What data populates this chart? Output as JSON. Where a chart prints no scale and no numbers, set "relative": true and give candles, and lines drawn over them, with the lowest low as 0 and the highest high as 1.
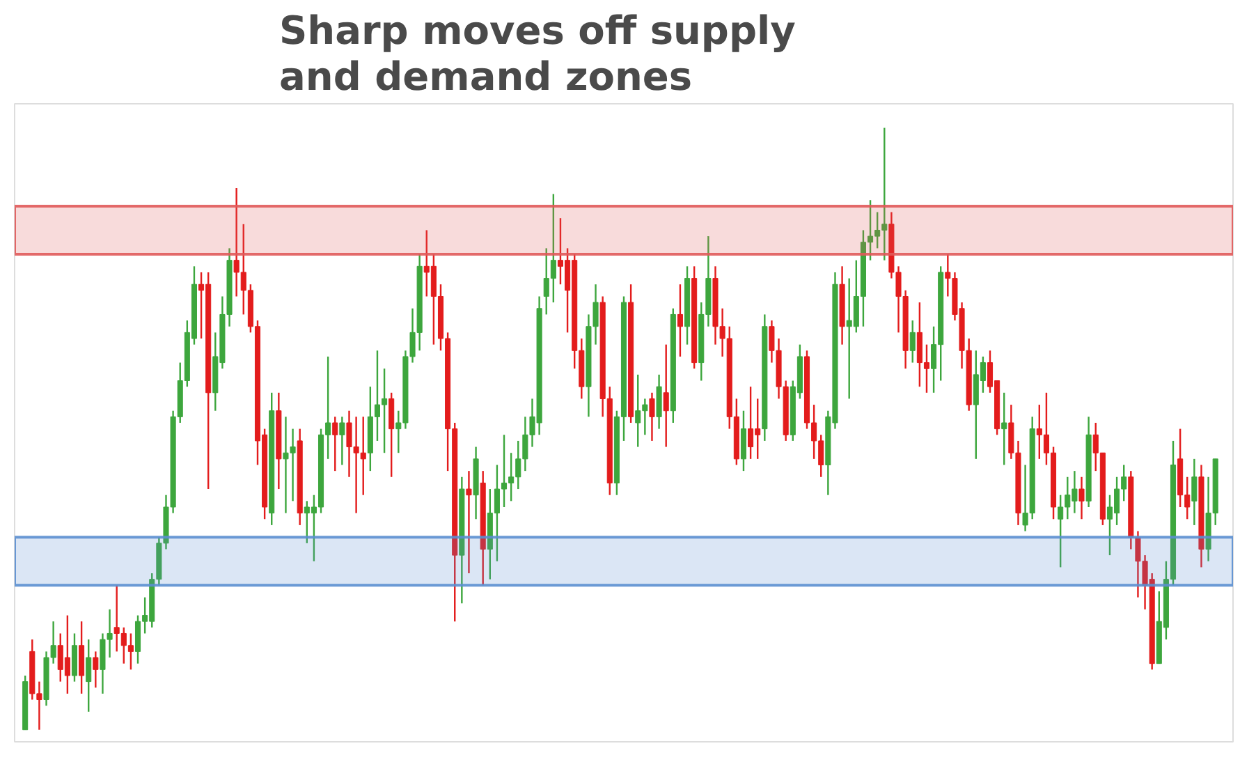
{
  "chart_data": {
    "type": "candlestick",
    "title": "Sharp moves off supply\nand demand zones",
    "relative": true,
    "categories": [
      null,
      null,
      null,
      null,
      null,
      null,
      null,
      null,
      null,
      null,
      null,
      null,
      null,
      null,
      null,
      null,
      null,
      null,
      null,
      null,
      null,
      null,
      null,
      null,
      null,
      null,
      null,
      null,
      null,
      null,
      null,
      null,
      null,
      null,
      null,
      null,
      null,
      null,
      null,
      null,
      null,
      null,
      null,
      null,
      null,
      null,
      null,
      null,
      null,
      null,
      null,
      null,
      null,
      null,
      null,
      null,
      null,
      null,
      null,
      null,
      null,
      null,
      null,
      null,
      null,
      null,
      null,
      null,
      null,
      null,
      null,
      null,
      null,
      null,
      null,
      null,
      null,
      null,
      null,
      null,
      null,
      null,
      null,
      null,
      null,
      null,
      null,
      null,
      null,
      null,
      null,
      null,
      null,
      null,
      null,
      null,
      null,
      null,
      null,
      null,
      null,
      null,
      null,
      null,
      null,
      null,
      null,
      null,
      null,
      null,
      null,
      null,
      null,
      null,
      null,
      null,
      null,
      null,
      null,
      null,
      null,
      null,
      null,
      null,
      null,
      null,
      null,
      null,
      null,
      null,
      null,
      null,
      null,
      null,
      null,
      null,
      null,
      null,
      null,
      null,
      null,
      null,
      null,
      null,
      null,
      null,
      null,
      null,
      null,
      null,
      null,
      null,
      null,
      null,
      null,
      null,
      null,
      null,
      null,
      null,
      null,
      null,
      null,
      null,
      null,
      null,
      null,
      null,
      null,
      null
    ],
    "ohlc": [
      [
        0,
        0.09,
        0,
        0.08
      ],
      [
        0.13,
        0.15,
        0.05,
        0.06
      ],
      [
        0.06,
        0.08,
        0,
        0.05
      ],
      [
        0.05,
        0.13,
        0.04,
        0.12
      ],
      [
        0.12,
        0.18,
        0.11,
        0.14
      ],
      [
        0.14,
        0.16,
        0.08,
        0.1
      ],
      [
        0.12,
        0.19,
        0.06,
        0.09
      ],
      [
        0.09,
        0.16,
        0.08,
        0.14
      ],
      [
        0.14,
        0.18,
        0.06,
        0.09
      ],
      [
        0.08,
        0.15,
        0.03,
        0.12
      ],
      [
        0.12,
        0.13,
        0.07,
        0.1
      ],
      [
        0.1,
        0.16,
        0.06,
        0.15
      ],
      [
        0.15,
        0.2,
        0.12,
        0.16
      ],
      [
        0.17,
        0.24,
        0.13,
        0.16
      ],
      [
        0.16,
        0.17,
        0.11,
        0.14
      ],
      [
        0.14,
        0.16,
        0.1,
        0.13
      ],
      [
        0.13,
        0.19,
        0.11,
        0.18
      ],
      [
        0.18,
        0.22,
        0.16,
        0.19
      ],
      [
        0.18,
        0.26,
        0.17,
        0.25
      ],
      [
        0.25,
        0.32,
        0.24,
        0.31
      ],
      [
        0.31,
        0.39,
        0.3,
        0.37
      ],
      [
        0.37,
        0.53,
        0.36,
        0.52
      ],
      [
        0.52,
        0.61,
        0.51,
        0.58
      ],
      [
        0.58,
        0.68,
        0.57,
        0.66
      ],
      [
        0.65,
        0.77,
        0.64,
        0.74
      ],
      [
        0.74,
        0.76,
        0.65,
        0.73
      ],
      [
        0.74,
        0.76,
        0.4,
        0.56
      ],
      [
        0.56,
        0.66,
        0.53,
        0.62
      ],
      [
        0.61,
        0.72,
        0.6,
        0.69
      ],
      [
        0.69,
        0.8,
        0.67,
        0.78
      ],
      [
        0.78,
        0.9,
        0.72,
        0.76
      ],
      [
        0.76,
        0.84,
        0.69,
        0.73
      ],
      [
        0.73,
        0.74,
        0.66,
        0.67
      ],
      [
        0.67,
        0.68,
        0.44,
        0.48
      ],
      [
        0.49,
        0.5,
        0.35,
        0.37
      ],
      [
        0.36,
        0.56,
        0.34,
        0.53
      ],
      [
        0.53,
        0.56,
        0.4,
        0.45
      ],
      [
        0.45,
        0.52,
        0.36,
        0.46
      ],
      [
        0.46,
        0.5,
        0.38,
        0.47
      ],
      [
        0.48,
        0.5,
        0.34,
        0.36
      ],
      [
        0.36,
        0.38,
        0.31,
        0.37
      ],
      [
        0.36,
        0.39,
        0.28,
        0.37
      ],
      [
        0.37,
        0.5,
        0.36,
        0.49
      ],
      [
        0.49,
        0.62,
        0.45,
        0.51
      ],
      [
        0.51,
        0.52,
        0.43,
        0.49
      ],
      [
        0.49,
        0.52,
        0.44,
        0.51
      ],
      [
        0.51,
        0.53,
        0.42,
        0.47
      ],
      [
        0.47,
        0.52,
        0.36,
        0.46
      ],
      [
        0.46,
        0.52,
        0.39,
        0.45
      ],
      [
        0.46,
        0.57,
        0.43,
        0.52
      ],
      [
        0.52,
        0.63,
        0.48,
        0.54
      ],
      [
        0.54,
        0.6,
        0.46,
        0.55
      ],
      [
        0.55,
        0.56,
        0.42,
        0.5
      ],
      [
        0.5,
        0.53,
        0.46,
        0.51
      ],
      [
        0.51,
        0.63,
        0.5,
        0.62
      ],
      [
        0.62,
        0.7,
        0.61,
        0.66
      ],
      [
        0.66,
        0.79,
        0.63,
        0.77
      ],
      [
        0.77,
        0.83,
        0.72,
        0.76
      ],
      [
        0.77,
        0.79,
        0.64,
        0.72
      ],
      [
        0.72,
        0.74,
        0.63,
        0.65
      ],
      [
        0.65,
        0.66,
        0.43,
        0.5
      ],
      [
        0.5,
        0.51,
        0.18,
        0.29
      ],
      [
        0.29,
        0.42,
        0.21,
        0.4
      ],
      [
        0.4,
        0.43,
        0.26,
        0.39
      ],
      [
        0.39,
        0.47,
        0.35,
        0.45
      ],
      [
        0.41,
        0.43,
        0.24,
        0.3
      ],
      [
        0.3,
        0.4,
        0.25,
        0.36
      ],
      [
        0.36,
        0.44,
        0.28,
        0.4
      ],
      [
        0.4,
        0.49,
        0.37,
        0.41
      ],
      [
        0.41,
        0.46,
        0.38,
        0.42
      ],
      [
        0.42,
        0.48,
        0.4,
        0.45
      ],
      [
        0.45,
        0.52,
        0.43,
        0.49
      ],
      [
        0.49,
        0.55,
        0.47,
        0.52
      ],
      [
        0.51,
        0.72,
        0.49,
        0.7
      ],
      [
        0.72,
        0.8,
        0.69,
        0.75
      ],
      [
        0.75,
        0.89,
        0.71,
        0.78
      ],
      [
        0.78,
        0.85,
        0.74,
        0.77
      ],
      [
        0.78,
        0.8,
        0.66,
        0.73
      ],
      [
        0.78,
        0.79,
        0.6,
        0.63
      ],
      [
        0.63,
        0.65,
        0.55,
        0.57
      ],
      [
        0.57,
        0.69,
        0.52,
        0.67
      ],
      [
        0.67,
        0.74,
        0.64,
        0.71
      ],
      [
        0.71,
        0.72,
        0.52,
        0.55
      ],
      [
        0.55,
        0.57,
        0.39,
        0.41
      ],
      [
        0.41,
        0.53,
        0.39,
        0.52
      ],
      [
        0.52,
        0.72,
        0.48,
        0.71
      ],
      [
        0.71,
        0.74,
        0.51,
        0.52
      ],
      [
        0.51,
        0.59,
        0.47,
        0.53
      ],
      [
        0.53,
        0.55,
        0.49,
        0.54
      ],
      [
        0.55,
        0.56,
        0.48,
        0.52
      ],
      [
        0.52,
        0.59,
        0.5,
        0.57
      ],
      [
        0.56,
        0.64,
        0.47,
        0.53
      ],
      [
        0.53,
        0.7,
        0.51,
        0.69
      ],
      [
        0.69,
        0.74,
        0.62,
        0.67
      ],
      [
        0.67,
        0.77,
        0.64,
        0.75
      ],
      [
        0.75,
        0.77,
        0.6,
        0.61
      ],
      [
        0.61,
        0.71,
        0.58,
        0.69
      ],
      [
        0.69,
        0.82,
        0.67,
        0.75
      ],
      [
        0.75,
        0.77,
        0.64,
        0.67
      ],
      [
        0.67,
        0.7,
        0.62,
        0.65
      ],
      [
        0.65,
        0.67,
        0.5,
        0.52
      ],
      [
        0.52,
        0.55,
        0.44,
        0.45
      ],
      [
        0.45,
        0.53,
        0.43,
        0.5
      ],
      [
        0.5,
        0.57,
        0.45,
        0.47
      ],
      [
        0.5,
        0.55,
        0.45,
        0.49
      ],
      [
        0.5,
        0.69,
        0.48,
        0.67
      ],
      [
        0.67,
        0.68,
        0.61,
        0.63
      ],
      [
        0.63,
        0.65,
        0.55,
        0.57
      ],
      [
        0.57,
        0.58,
        0.48,
        0.49
      ],
      [
        0.49,
        0.58,
        0.48,
        0.57
      ],
      [
        0.56,
        0.64,
        0.55,
        0.62
      ],
      [
        0.62,
        0.63,
        0.5,
        0.51
      ],
      [
        0.51,
        0.54,
        0.45,
        0.48
      ],
      [
        0.48,
        0.49,
        0.42,
        0.44
      ],
      [
        0.44,
        0.53,
        0.39,
        0.52
      ],
      [
        0.51,
        0.76,
        0.5,
        0.74
      ],
      [
        0.74,
        0.77,
        0.64,
        0.67
      ],
      [
        0.67,
        0.75,
        0.55,
        0.68
      ],
      [
        0.67,
        0.78,
        0.66,
        0.72
      ],
      [
        0.72,
        0.83,
        0.67,
        0.81
      ],
      [
        0.81,
        0.88,
        0.78,
        0.82
      ],
      [
        0.82,
        0.86,
        0.8,
        0.83
      ],
      [
        0.83,
        1,
        0.78,
        0.84
      ],
      [
        0.84,
        0.86,
        0.75,
        0.76
      ],
      [
        0.76,
        0.77,
        0.66,
        0.72
      ],
      [
        0.72,
        0.73,
        0.6,
        0.63
      ],
      [
        0.63,
        0.68,
        0.61,
        0.66
      ],
      [
        0.66,
        0.71,
        0.57,
        0.61
      ],
      [
        0.61,
        0.64,
        0.56,
        0.6
      ],
      [
        0.6,
        0.67,
        0.56,
        0.64
      ],
      [
        0.64,
        0.77,
        0.58,
        0.76
      ],
      [
        0.76,
        0.79,
        0.72,
        0.75
      ],
      [
        0.75,
        0.76,
        0.68,
        0.69
      ],
      [
        0.7,
        0.71,
        0.6,
        0.63
      ],
      [
        0.63,
        0.65,
        0.53,
        0.54
      ],
      [
        0.54,
        0.63,
        0.45,
        0.59
      ],
      [
        0.58,
        0.62,
        0.56,
        0.61
      ],
      [
        0.61,
        0.63,
        0.56,
        0.57
      ],
      [
        0.58,
        0.58,
        0.49,
        0.5
      ],
      [
        0.5,
        0.56,
        0.44,
        0.51
      ],
      [
        0.51,
        0.54,
        0.45,
        0.46
      ],
      [
        0.46,
        0.48,
        0.34,
        0.36
      ],
      [
        0.34,
        0.44,
        0.33,
        0.36
      ],
      [
        0.36,
        0.52,
        0.35,
        0.5
      ],
      [
        0.5,
        0.54,
        0.45,
        0.49
      ],
      [
        0.49,
        0.56,
        0.44,
        0.46
      ],
      [
        0.46,
        0.47,
        0.35,
        0.37
      ],
      [
        0.35,
        0.39,
        0.27,
        0.37
      ],
      [
        0.37,
        0.42,
        0.35,
        0.39
      ],
      [
        0.38,
        0.43,
        0.36,
        0.4
      ],
      [
        0.4,
        0.42,
        0.35,
        0.38
      ],
      [
        0.38,
        0.52,
        0.37,
        0.49
      ],
      [
        0.49,
        0.51,
        0.43,
        0.46
      ],
      [
        0.46,
        0.46,
        0.34,
        0.35
      ],
      [
        0.35,
        0.39,
        0.29,
        0.37
      ],
      [
        0.36,
        0.42,
        0.34,
        0.4
      ],
      [
        0.4,
        0.44,
        0.38,
        0.42
      ],
      [
        0.42,
        0.43,
        0.3,
        0.32
      ],
      [
        0.32,
        0.33,
        0.22,
        0.28
      ],
      [
        0.28,
        0.29,
        0.2,
        0.24
      ],
      [
        0.25,
        0.26,
        0.1,
        0.11
      ],
      [
        0.11,
        0.23,
        0.11,
        0.18
      ],
      [
        0.17,
        0.28,
        0.15,
        0.25
      ],
      [
        0.25,
        0.48,
        0.24,
        0.44
      ],
      [
        0.45,
        0.5,
        0.37,
        0.39
      ],
      [
        0.39,
        0.42,
        0.35,
        0.37
      ],
      [
        0.38,
        0.45,
        0.34,
        0.42
      ],
      [
        0.42,
        0.44,
        0.27,
        0.3
      ],
      [
        0.3,
        0.42,
        0.28,
        0.36
      ],
      [
        0.36,
        0.45,
        0.34,
        0.45
      ]
    ],
    "colors": [
      "#3da63d",
      "#e31c1c",
      "#e31c1c",
      "#3da63d",
      "#3da63d",
      "#e31c1c",
      "#e31c1c",
      "#3da63d",
      "#e31c1c",
      "#3da63d",
      "#e31c1c",
      "#3da63d",
      "#3da63d",
      "#e31c1c",
      "#e31c1c",
      "#e31c1c",
      "#3da63d",
      "#3da63d",
      "#3da63d",
      "#3da63d",
      "#3da63d",
      "#3da63d",
      "#3da63d",
      "#3da63d",
      "#3da63d",
      "#e31c1c",
      "#e31c1c",
      "#3da63d",
      "#3da63d",
      "#3da63d",
      "#e31c1c",
      "#e31c1c",
      "#e31c1c",
      "#e31c1c",
      "#e31c1c",
      "#3da63d",
      "#e31c1c",
      "#3da63d",
      "#3da63d",
      "#e31c1c",
      "#3da63d",
      "#3da63d",
      "#3da63d",
      "#3da63d",
      "#e31c1c",
      "#3da63d",
      "#e31c1c",
      "#e31c1c",
      "#e31c1c",
      "#3da63d",
      "#3da63d",
      "#3da63d",
      "#e31c1c",
      "#3da63d",
      "#3da63d",
      "#3da63d",
      "#3da63d",
      "#e31c1c",
      "#e31c1c",
      "#e31c1c",
      "#e31c1c",
      "#e31c1c",
      "#3da63d",
      "#e31c1c",
      "#3da63d",
      "#e31c1c",
      "#3da63d",
      "#3da63d",
      "#3da63d",
      "#3da63d",
      "#3da63d",
      "#3da63d",
      "#3da63d",
      "#3da63d",
      "#3da63d",
      "#3da63d",
      "#e31c1c",
      "#e31c1c",
      "#e31c1c",
      "#e31c1c",
      "#3da63d",
      "#3da63d",
      "#e31c1c",
      "#e31c1c",
      "#3da63d",
      "#3da63d",
      "#e31c1c",
      "#3da63d",
      "#3da63d",
      "#e31c1c",
      "#3da63d",
      "#e31c1c",
      "#3da63d",
      "#e31c1c",
      "#3da63d",
      "#e31c1c",
      "#3da63d",
      "#3da63d",
      "#e31c1c",
      "#e31c1c",
      "#e31c1c",
      "#e31c1c",
      "#3da63d",
      "#e31c1c",
      "#e31c1c",
      "#3da63d",
      "#e31c1c",
      "#e31c1c",
      "#e31c1c",
      "#3da63d",
      "#3da63d",
      "#e31c1c",
      "#e31c1c",
      "#e31c1c",
      "#3da63d",
      "#3da63d",
      "#e31c1c",
      "#3da63d",
      "#3da63d",
      "#3da63d",
      "#3da63d",
      "#3da63d",
      "#3da63d",
      "#e31c1c",
      "#e31c1c",
      "#e31c1c",
      "#3da63d",
      "#e31c1c",
      "#e31c1c",
      "#3da63d",
      "#3da63d",
      "#e31c1c",
      "#e31c1c",
      "#e31c1c",
      "#e31c1c",
      "#3da63d",
      "#3da63d",
      "#e31c1c",
      "#e31c1c",
      "#3da63d",
      "#e31c1c",
      "#e31c1c",
      "#3da63d",
      "#3da63d",
      "#e31c1c",
      "#e31c1c",
      "#e31c1c",
      "#3da63d",
      "#3da63d",
      "#3da63d",
      "#e31c1c",
      "#3da63d",
      "#e31c1c",
      "#e31c1c",
      "#3da63d",
      "#3da63d",
      "#3da63d",
      "#e31c1c",
      "#e31c1c",
      "#e31c1c",
      "#e31c1c",
      "#3da63d",
      "#3da63d",
      "#3da63d",
      "#e31c1c",
      "#e31c1c",
      "#3da63d",
      "#e31c1c",
      "#3da63d",
      "#3da63d"
    ],
    "bands": [
      {
        "axis": "y",
        "from": 0.79,
        "to": 0.87,
        "color": "#e05a5a"
      },
      {
        "axis": "y",
        "from": 0.24,
        "to": 0.32,
        "color": "#5b8fd0"
      }
    ]
  }
}
